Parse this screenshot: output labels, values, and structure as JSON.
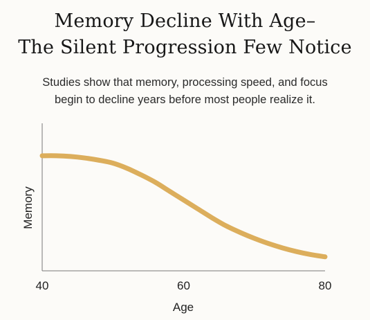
{
  "header": {
    "title_line1": "Memory Decline With Age–",
    "title_line2": "The Silent Progression Few Notice",
    "subtitle_line1": "Studies show that memory, processing speed, and focus",
    "subtitle_line2": "begin to decline years before most people realize it."
  },
  "chart_data": {
    "type": "line",
    "title": "",
    "xlabel": "Age",
    "ylabel": "Memory",
    "xlim": [
      40,
      80
    ],
    "ylim": [
      0,
      100
    ],
    "xticks": [
      40,
      60,
      80
    ],
    "yticks": [],
    "grid": false,
    "series": [
      {
        "name": "",
        "color": "#dcae5c",
        "x": [
          40,
          42,
          44,
          46,
          48,
          50,
          52,
          54,
          56,
          58,
          60,
          62,
          64,
          66,
          68,
          70,
          72,
          74,
          76,
          78,
          80
        ],
        "y": [
          78,
          78,
          77.5,
          76.5,
          75,
          73,
          69.5,
          65,
          60,
          54,
          48,
          42,
          36,
          30.5,
          26,
          22,
          18.5,
          15.5,
          13,
          11,
          9.5
        ]
      }
    ]
  }
}
